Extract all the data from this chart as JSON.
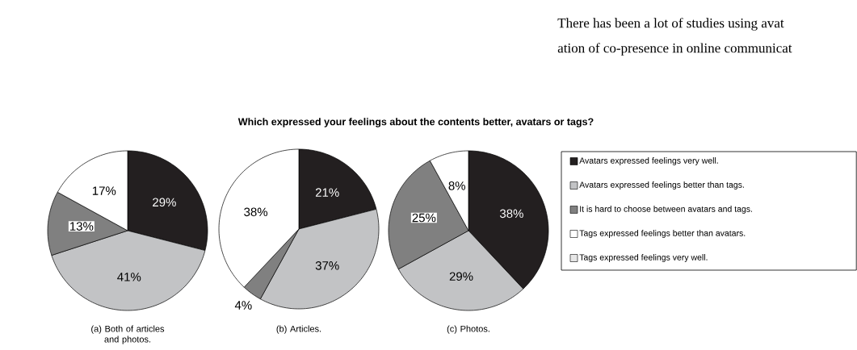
{
  "chart_data": [
    {
      "type": "pie",
      "xlabel": "(a) Both of articles and photos.",
      "categories": [
        null,
        null,
        null,
        null,
        null
      ],
      "values": [
        29,
        41,
        13,
        17,
        0
      ],
      "value_labels": [
        "29%",
        "41%",
        "13%",
        "17%",
        null
      ],
      "colors": [
        "#231f20",
        "#c2c3c5",
        "#808080",
        "#ffffff",
        "#e6e6e6"
      ]
    },
    {
      "type": "pie",
      "title": "Which expressed your feelings about the contents better, avatars or tags?",
      "xlabel": "(b) Articles.",
      "categories": [
        null,
        null,
        null,
        null,
        null
      ],
      "values": [
        21,
        37,
        4,
        38,
        0
      ],
      "value_labels": [
        "21%",
        "37%",
        "4%",
        "38%",
        null
      ],
      "colors": [
        "#231f20",
        "#c2c3c5",
        "#808080",
        "#ffffff",
        "#e6e6e6"
      ]
    },
    {
      "type": "pie",
      "xlabel": "(c) Photos.",
      "legend": "right",
      "categories": [
        "Avatars expressed feelings very well.",
        "Avatars expressed feelings better than tags.",
        "It is hard to choose between avatars and tags.",
        "Tags expressed feelings better than avatars.",
        "Tags expressed feelings very well."
      ],
      "values": [
        38,
        29,
        25,
        8,
        0
      ],
      "value_labels": [
        "38%",
        "29%",
        "25%",
        "8%",
        null
      ],
      "colors": [
        "#231f20",
        "#c2c3c5",
        "#808080",
        "#ffffff",
        "#e6e6e6"
      ],
      "annotations": [
        "There has been a lot of studies using avat",
        "ation of co-presence in online communicat"
      ]
    }
  ]
}
